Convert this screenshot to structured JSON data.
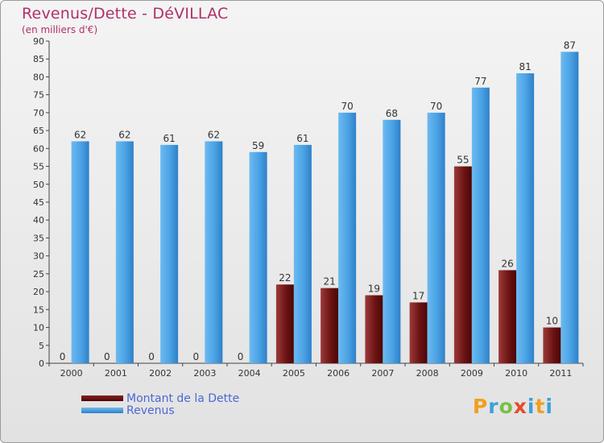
{
  "header": {
    "title": "Revenus/Dette - DéVILLAC",
    "subtitle": "(en milliers d'€)"
  },
  "legend": [
    {
      "label": "Montant de la Dette",
      "color": "#7a1818"
    },
    {
      "label": "Revenus",
      "color": "#4fa8e8"
    }
  ],
  "brand": {
    "name": "Proxiti"
  },
  "chart_data": {
    "type": "bar",
    "title": "Revenus/Dette - DéVILLAC",
    "subtitle": "(en milliers d'€)",
    "categories": [
      "2000",
      "2001",
      "2002",
      "2003",
      "2004",
      "2005",
      "2006",
      "2007",
      "2008",
      "2009",
      "2010",
      "2011"
    ],
    "series": [
      {
        "name": "Montant de la Dette",
        "color": "#7a1818",
        "values": [
          0,
          0,
          0,
          0,
          0,
          22,
          21,
          19,
          17,
          55,
          26,
          10
        ]
      },
      {
        "name": "Revenus",
        "color": "#4fa8e8",
        "values": [
          62,
          62,
          61,
          62,
          59,
          61,
          70,
          68,
          70,
          77,
          81,
          87
        ]
      }
    ],
    "ylim": [
      0,
      90
    ],
    "ytick_step": 5,
    "grid": false,
    "legend_position": "bottom-left"
  }
}
